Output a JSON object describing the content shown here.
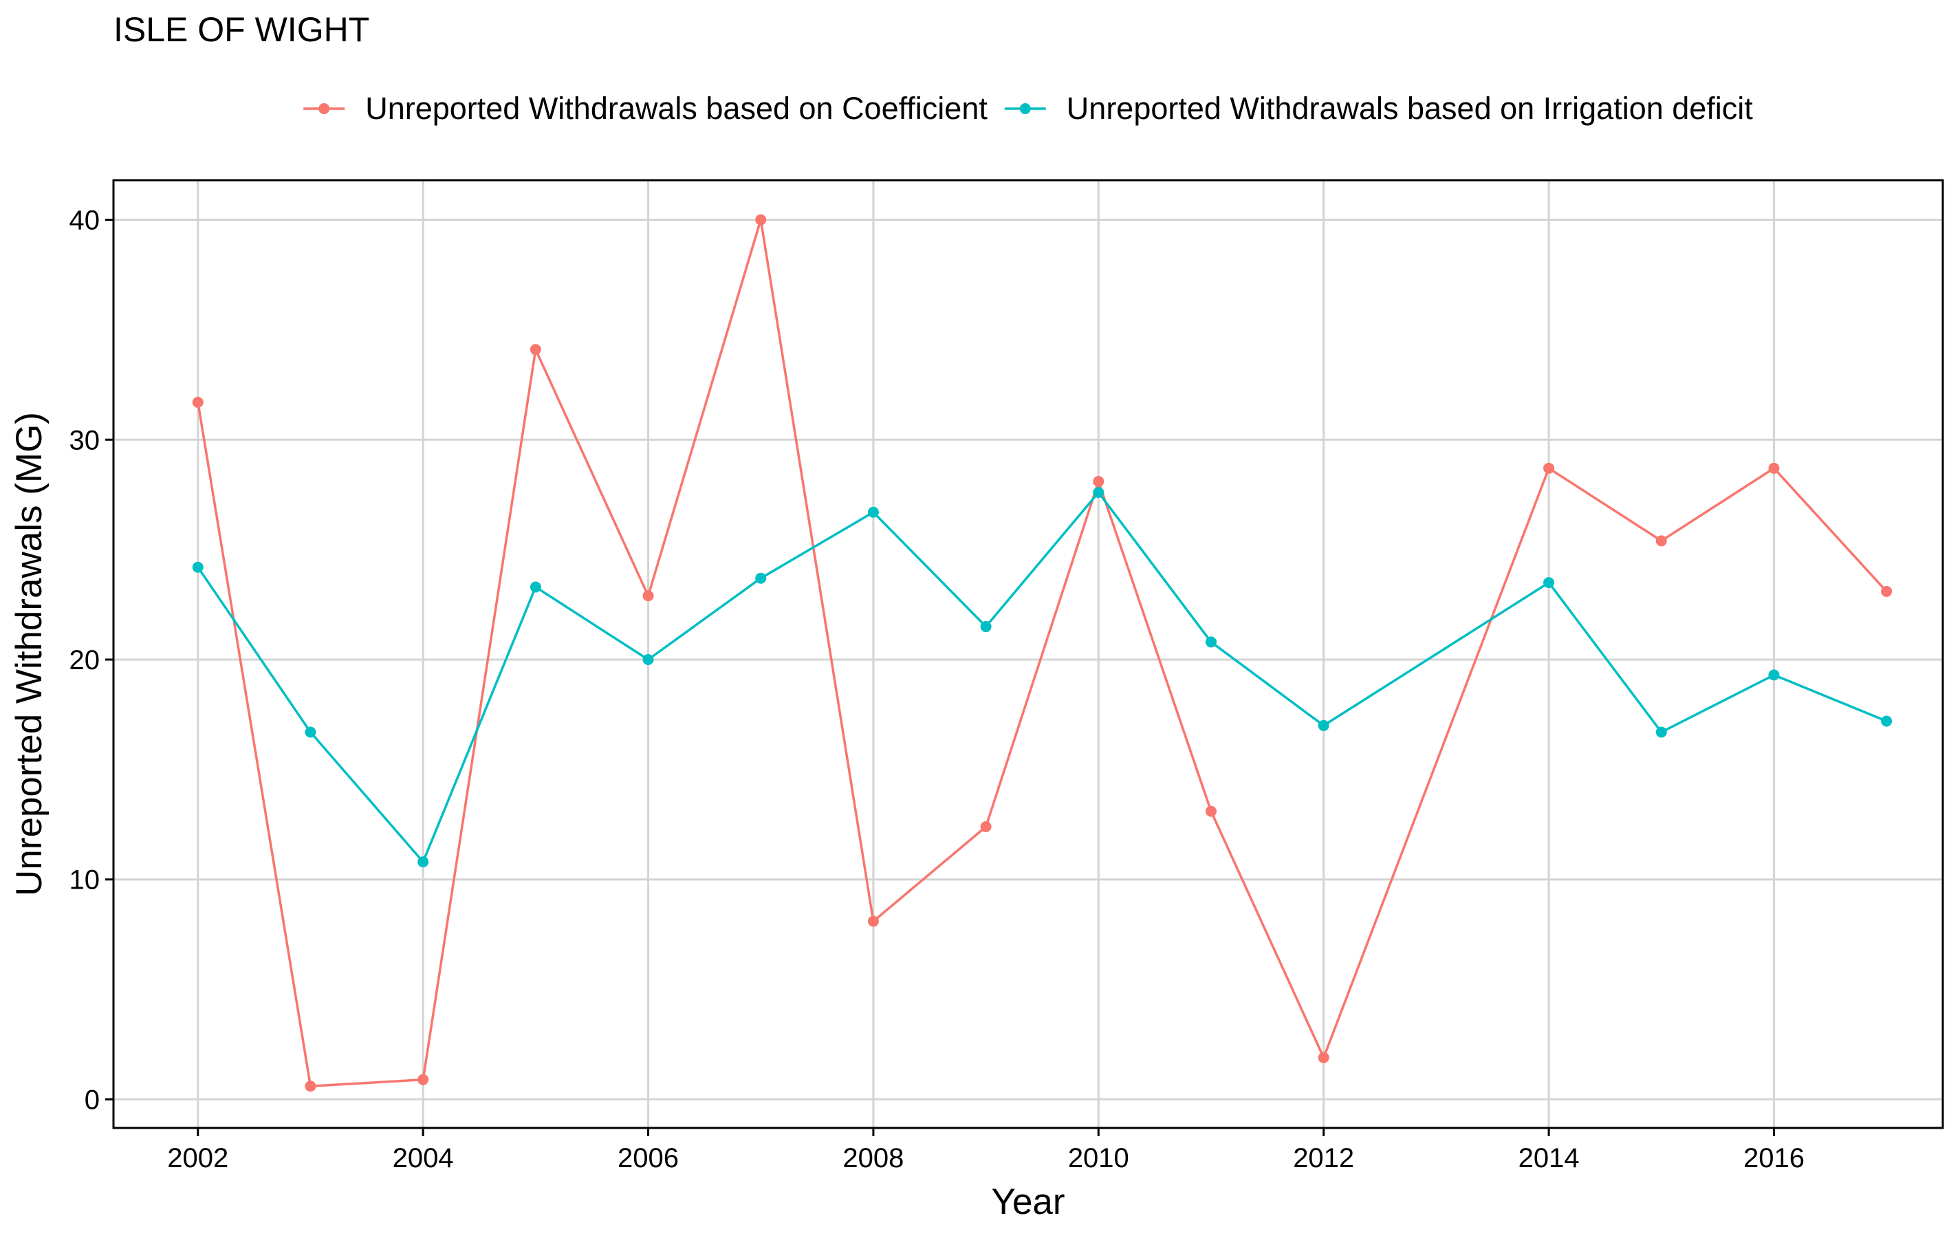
{
  "chart_data": {
    "type": "line",
    "title": "ISLE OF WIGHT",
    "xlabel": "Year",
    "ylabel": "Unreported Withdrawals (MG)",
    "xlim": [
      2001.25,
      2017.5
    ],
    "ylim": [
      -1.3,
      41.8
    ],
    "x_ticks": [
      2002,
      2004,
      2006,
      2008,
      2010,
      2012,
      2014,
      2016
    ],
    "y_ticks": [
      0,
      10,
      20,
      30,
      40
    ],
    "grid": true,
    "legend_position": "top",
    "x": [
      2002,
      2003,
      2004,
      2005,
      2006,
      2007,
      2008,
      2009,
      2010,
      2011,
      2012,
      2014,
      2015,
      2016,
      2017
    ],
    "series": [
      {
        "name": "Unreported Withdrawals based on Coefficient",
        "color": "#F8766D",
        "values": [
          31.7,
          0.6,
          0.9,
          34.1,
          22.9,
          40.0,
          8.1,
          12.4,
          28.1,
          13.1,
          1.9,
          28.7,
          25.4,
          28.7,
          23.1
        ]
      },
      {
        "name": "Unreported Withdrawals based on Irrigation deficit",
        "color": "#00BFC4",
        "values": [
          24.2,
          16.7,
          10.8,
          23.3,
          20.0,
          23.7,
          26.7,
          21.5,
          27.6,
          20.8,
          17.0,
          23.5,
          16.7,
          19.3,
          17.2
        ]
      }
    ]
  }
}
